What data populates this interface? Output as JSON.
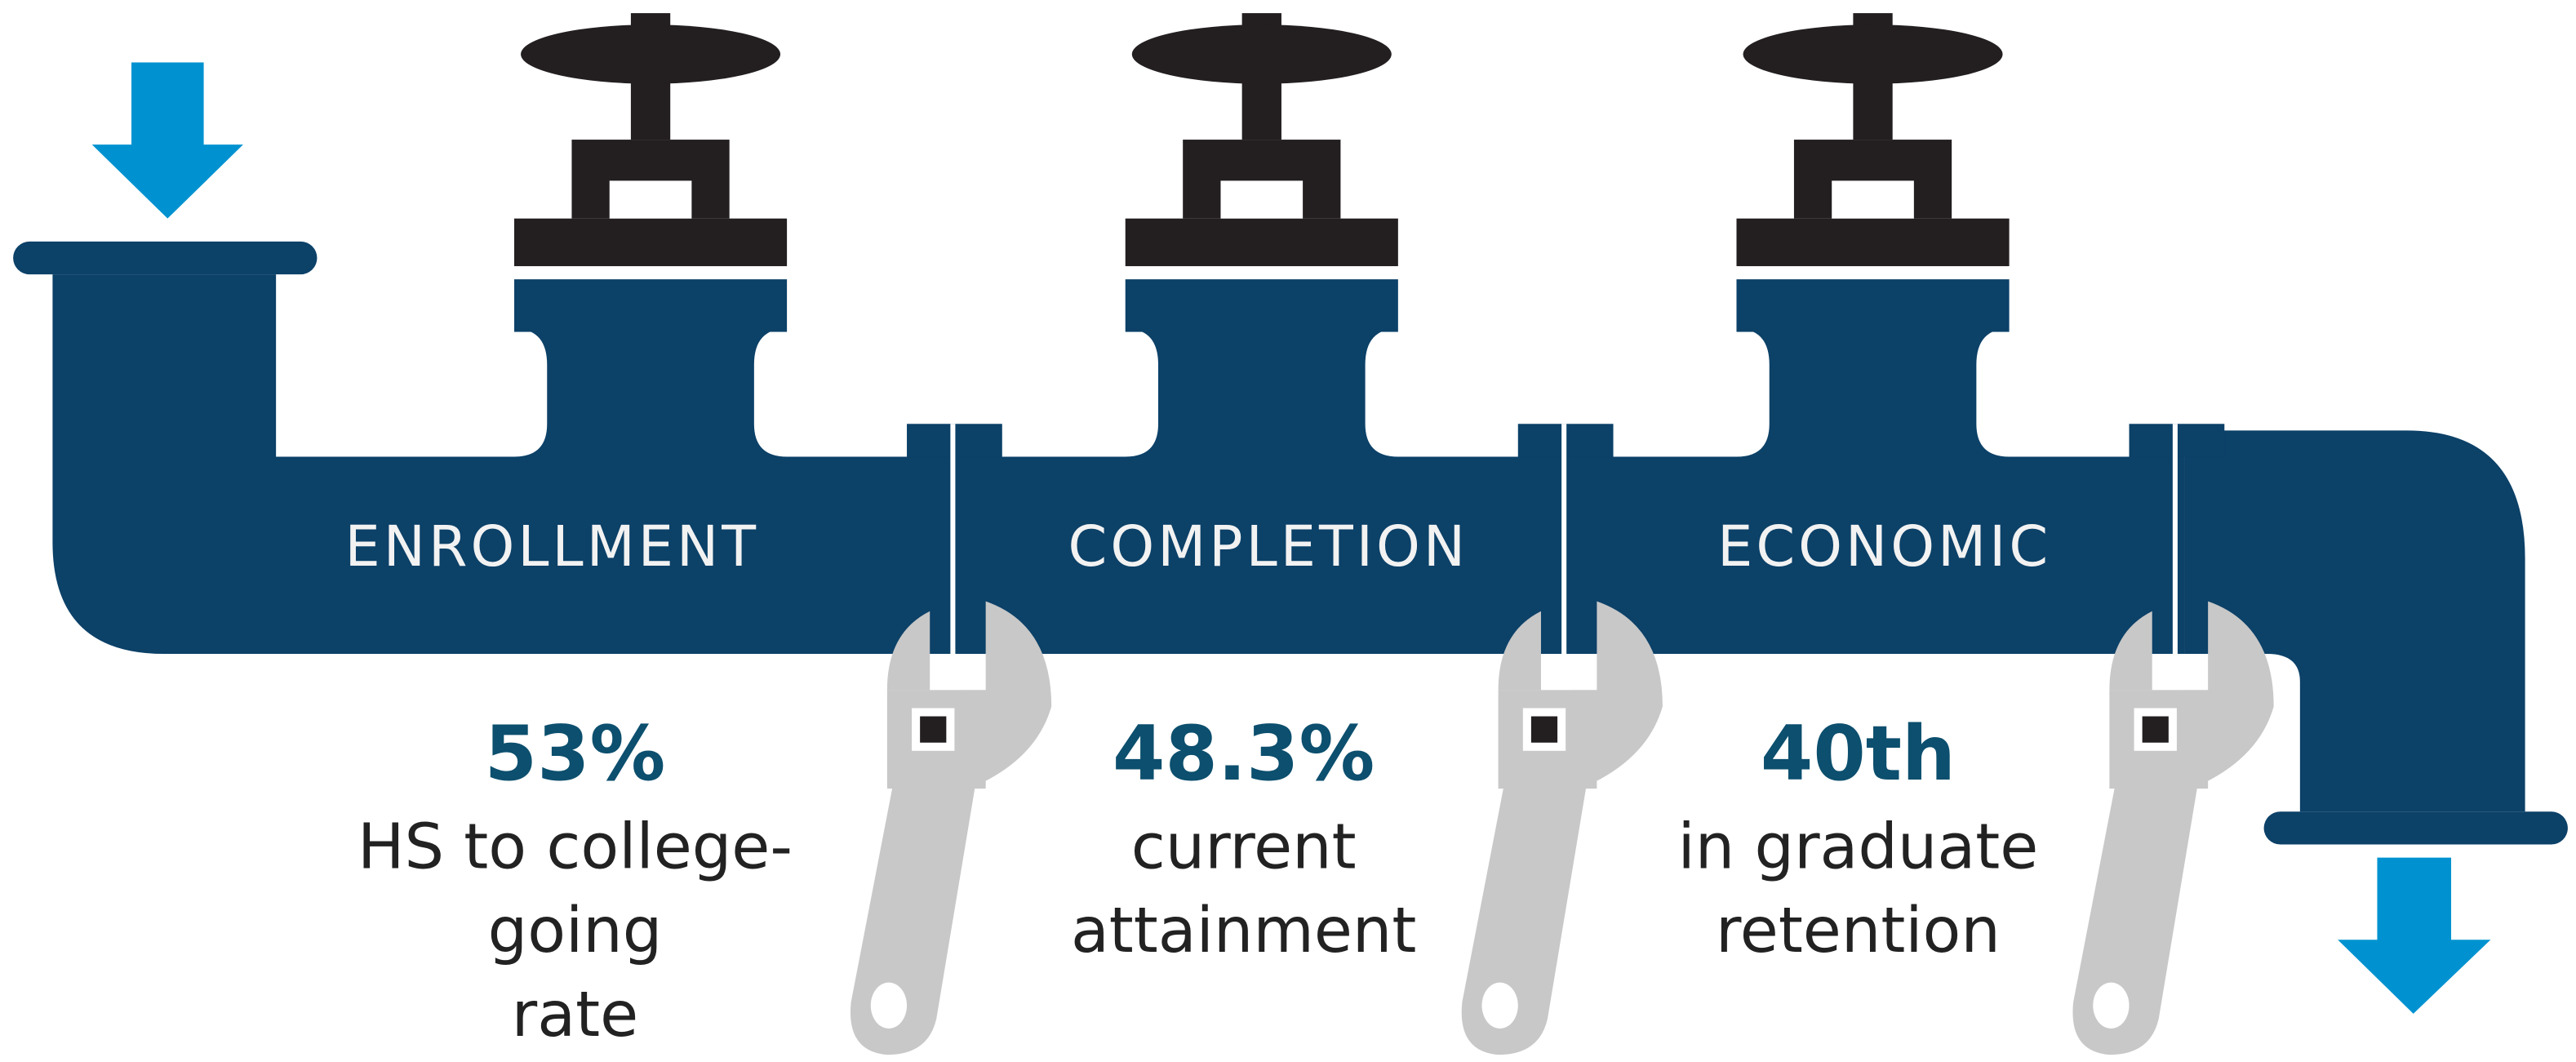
{
  "sections": [
    {
      "label": "ENROLLMENT",
      "stat": "53%",
      "description": [
        "HS to college-",
        "going",
        "rate"
      ]
    },
    {
      "label": "COMPLETION",
      "stat": "48.3%",
      "description": [
        "current",
        "attainment"
      ]
    },
    {
      "label": "ECONOMIC",
      "stat": "40th",
      "description": [
        "in graduate",
        "retention"
      ]
    }
  ]
}
